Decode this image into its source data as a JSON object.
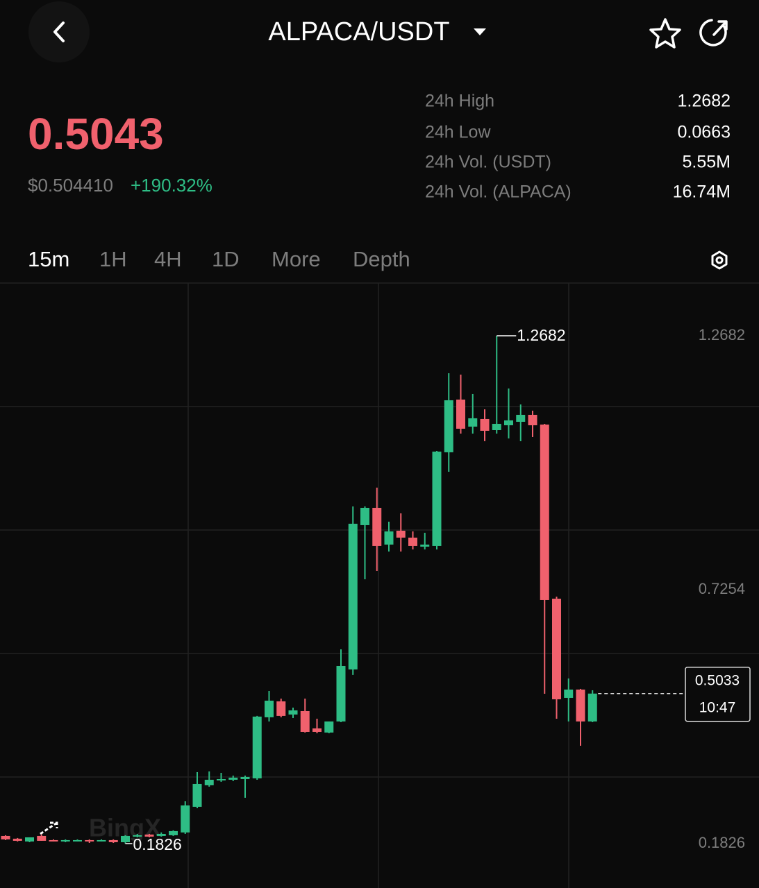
{
  "header": {
    "pair": "ALPACA/USDT"
  },
  "price": {
    "last": "0.5043",
    "usd": "$0.504410",
    "change": "+190.32%"
  },
  "stats": [
    {
      "label": "24h High",
      "value": "1.2682"
    },
    {
      "label": "24h Low",
      "value": "0.0663"
    },
    {
      "label": "24h Vol. (USDT)",
      "value": "5.55M"
    },
    {
      "label": "24h Vol. (ALPACA)",
      "value": "16.74M"
    }
  ],
  "tabs": [
    "15m",
    "1H",
    "4H",
    "1D",
    "More",
    "Depth"
  ],
  "chart_data": {
    "type": "candlestick",
    "open": [
      0.199,
      0.1931,
      0.1871,
      0.199,
      0.1901,
      0.1871,
      0.1886,
      0.1901,
      0.1886,
      0.1901,
      0.1856,
      0.1975,
      0.202,
      0.199,
      0.2005,
      0.2064,
      0.2613,
      0.3073,
      0.3177,
      0.3191,
      0.3206,
      0.3221,
      0.4526,
      0.4867,
      0.4585,
      0.4659,
      0.4289,
      0.42,
      0.4437,
      0.5549,
      0.8634,
      0.9004,
      0.8218,
      0.8515,
      0.8367,
      0.8174,
      0.8189,
      1.0191,
      1.1318,
      1.074,
      1.0903,
      1.0665,
      1.0769,
      1.0843,
      1.0992,
      1.0784,
      0.7062,
      0.4941,
      0.5119,
      0.4437
    ],
    "high": [
      0.2005,
      0.1946,
      0.196,
      0.202,
      0.1916,
      0.1916,
      0.1916,
      0.1916,
      0.1916,
      0.1916,
      0.2005,
      0.2034,
      0.2034,
      0.2064,
      0.2109,
      0.2731,
      0.3354,
      0.3369,
      0.3339,
      0.328,
      0.328,
      0.4556,
      0.5089,
      0.4926,
      0.4733,
      0.4926,
      0.4496,
      0.4437,
      0.5979,
      0.9034,
      0.9034,
      0.9435,
      0.8708,
      0.8886,
      0.85,
      0.8471,
      1.022,
      1.1881,
      1.1852,
      1.1437,
      1.111,
      1.2682,
      1.1555,
      1.1214,
      1.1081,
      1.0799,
      0.7106,
      0.5356,
      0.5134,
      0.5104
    ],
    "low": [
      0.1901,
      0.1871,
      0.1856,
      0.1886,
      0.1871,
      0.1856,
      0.1871,
      0.1841,
      0.1871,
      0.1841,
      0.1826,
      0.196,
      0.196,
      0.1975,
      0.199,
      0.2034,
      0.2583,
      0.3043,
      0.3147,
      0.3162,
      0.2806,
      0.3191,
      0.4437,
      0.4526,
      0.4511,
      0.42,
      0.4185,
      0.4185,
      0.4422,
      0.5431,
      0.7477,
      0.7655,
      0.807,
      0.807,
      0.8115,
      0.8115,
      0.8115,
      0.9776,
      1.0591,
      1.0591,
      1.0428,
      1.0591,
      1.0487,
      1.0428,
      1.0517,
      0.503,
      0.4496,
      0.4437,
      0.3918,
      0.4422
    ],
    "close": [
      0.1916,
      0.1886,
      0.196,
      0.1886,
      0.1871,
      0.1901,
      0.1901,
      0.1871,
      0.1901,
      0.1856,
      0.199,
      0.2005,
      0.1975,
      0.2034,
      0.2094,
      0.2642,
      0.3102,
      0.3191,
      0.3206,
      0.3236,
      0.325,
      0.4541,
      0.4882,
      0.4556,
      0.4674,
      0.4214,
      0.4214,
      0.4437,
      0.5623,
      0.8664,
      0.9004,
      0.8189,
      0.85,
      0.8367,
      0.8189,
      0.8218,
      1.0206,
      1.1303,
      1.0695,
      1.0918,
      1.0651,
      1.0799,
      1.0873,
      1.0992,
      1.0769,
      0.7032,
      0.4911,
      0.5119,
      0.4437,
      0.5033
    ],
    "up_color": "#2ebd85",
    "down_color": "#f0616d",
    "ylim": [
      0.0877,
      1.3809
    ],
    "yticks": [
      0.1826,
      0.7254,
      1.2682
    ],
    "countdown": "10:47",
    "watermark": "BingX"
  }
}
